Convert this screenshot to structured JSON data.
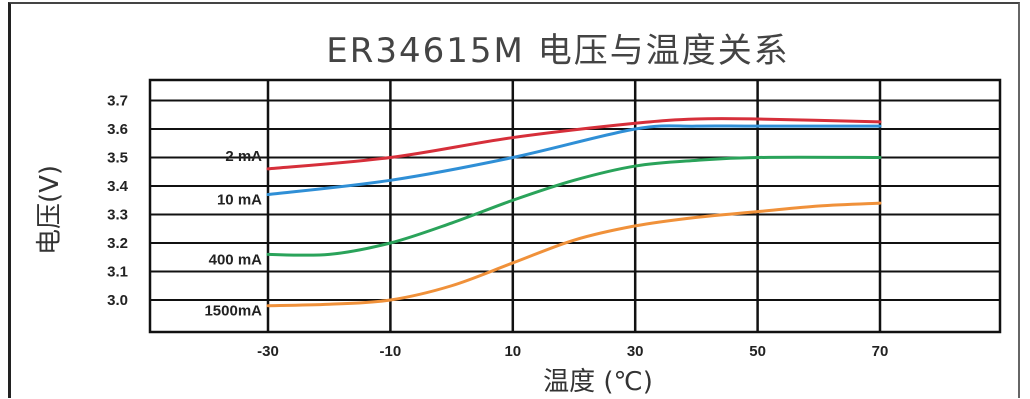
{
  "chart_data": {
    "type": "line",
    "title": "ER34615M 电压与温度关系",
    "xlabel": "温度 (℃)",
    "ylabel": "电压(V)",
    "x_ticks": [
      "-30",
      "-10",
      "10",
      "30",
      "50",
      "70"
    ],
    "y_ticks": [
      "3.0",
      "3.1",
      "3.2",
      "3.3",
      "3.4",
      "3.5",
      "3.6",
      "3.7"
    ],
    "xlim": [
      -50,
      90
    ],
    "ylim": [
      2.9,
      3.75
    ],
    "grid": true,
    "series": [
      {
        "name": "2 mA",
        "color": "#d62f3a",
        "x": [
          -30,
          -10,
          10,
          30,
          40,
          50,
          70
        ],
        "y": [
          3.46,
          3.5,
          3.57,
          3.62,
          3.635,
          3.635,
          3.625
        ]
      },
      {
        "name": "10 mA",
        "color": "#2f8fd6",
        "x": [
          -30,
          -10,
          10,
          30,
          40,
          50,
          70
        ],
        "y": [
          3.37,
          3.42,
          3.5,
          3.6,
          3.61,
          3.61,
          3.61
        ]
      },
      {
        "name": "400 mA",
        "color": "#2aa35a",
        "x": [
          -30,
          -20,
          -10,
          0,
          10,
          20,
          30,
          40,
          50,
          70
        ],
        "y": [
          3.16,
          3.16,
          3.2,
          3.27,
          3.35,
          3.42,
          3.47,
          3.49,
          3.5,
          3.5
        ]
      },
      {
        "name": "1500mA",
        "color": "#f0913a",
        "x": [
          -30,
          -20,
          -10,
          0,
          10,
          20,
          30,
          40,
          50,
          60,
          70
        ],
        "y": [
          2.98,
          2.985,
          3.0,
          3.05,
          3.13,
          3.21,
          3.26,
          3.29,
          3.31,
          3.33,
          3.34
        ]
      }
    ]
  }
}
